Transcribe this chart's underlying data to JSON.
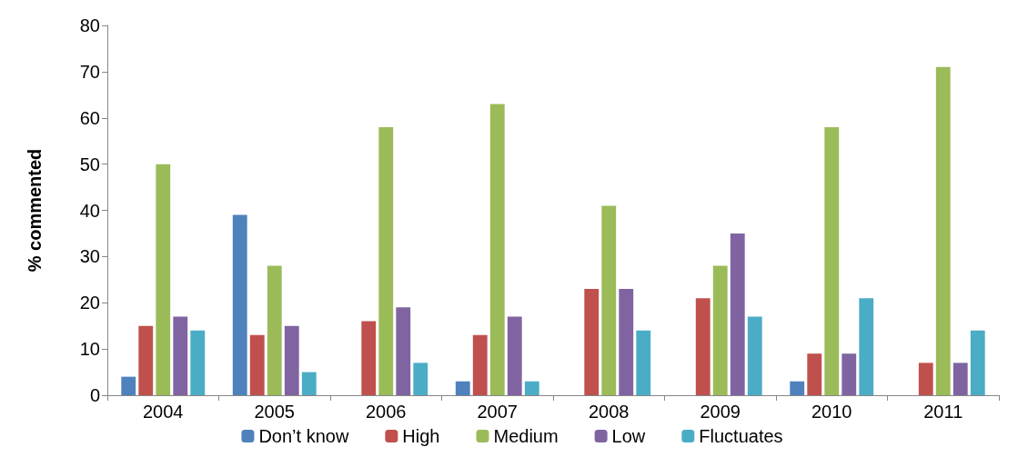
{
  "chart_data": {
    "type": "bar",
    "ylabel": "% commented",
    "categories": [
      "2004",
      "2005",
      "2006",
      "2007",
      "2008",
      "2009",
      "2010",
      "2011"
    ],
    "series": [
      {
        "name": "Don’t know",
        "color": "#4f81bd",
        "values": [
          4,
          39,
          0,
          3,
          0,
          0,
          3,
          0
        ]
      },
      {
        "name": "High",
        "color": "#c0504d",
        "values": [
          15,
          13,
          16,
          13,
          23,
          21,
          9,
          7
        ]
      },
      {
        "name": "Medium",
        "color": "#9bbb59",
        "values": [
          50,
          28,
          58,
          63,
          41,
          28,
          58,
          71
        ]
      },
      {
        "name": "Low",
        "color": "#8064a2",
        "values": [
          17,
          15,
          19,
          17,
          23,
          35,
          9,
          7
        ]
      },
      {
        "name": "Fluctuates",
        "color": "#4bacc6",
        "values": [
          14,
          5,
          7,
          3,
          14,
          17,
          21,
          14
        ]
      }
    ],
    "ylim": [
      0,
      80
    ],
    "yticks": [
      0,
      10,
      20,
      30,
      40,
      50,
      60,
      70,
      80
    ],
    "grid": false,
    "legend": "bottom"
  }
}
